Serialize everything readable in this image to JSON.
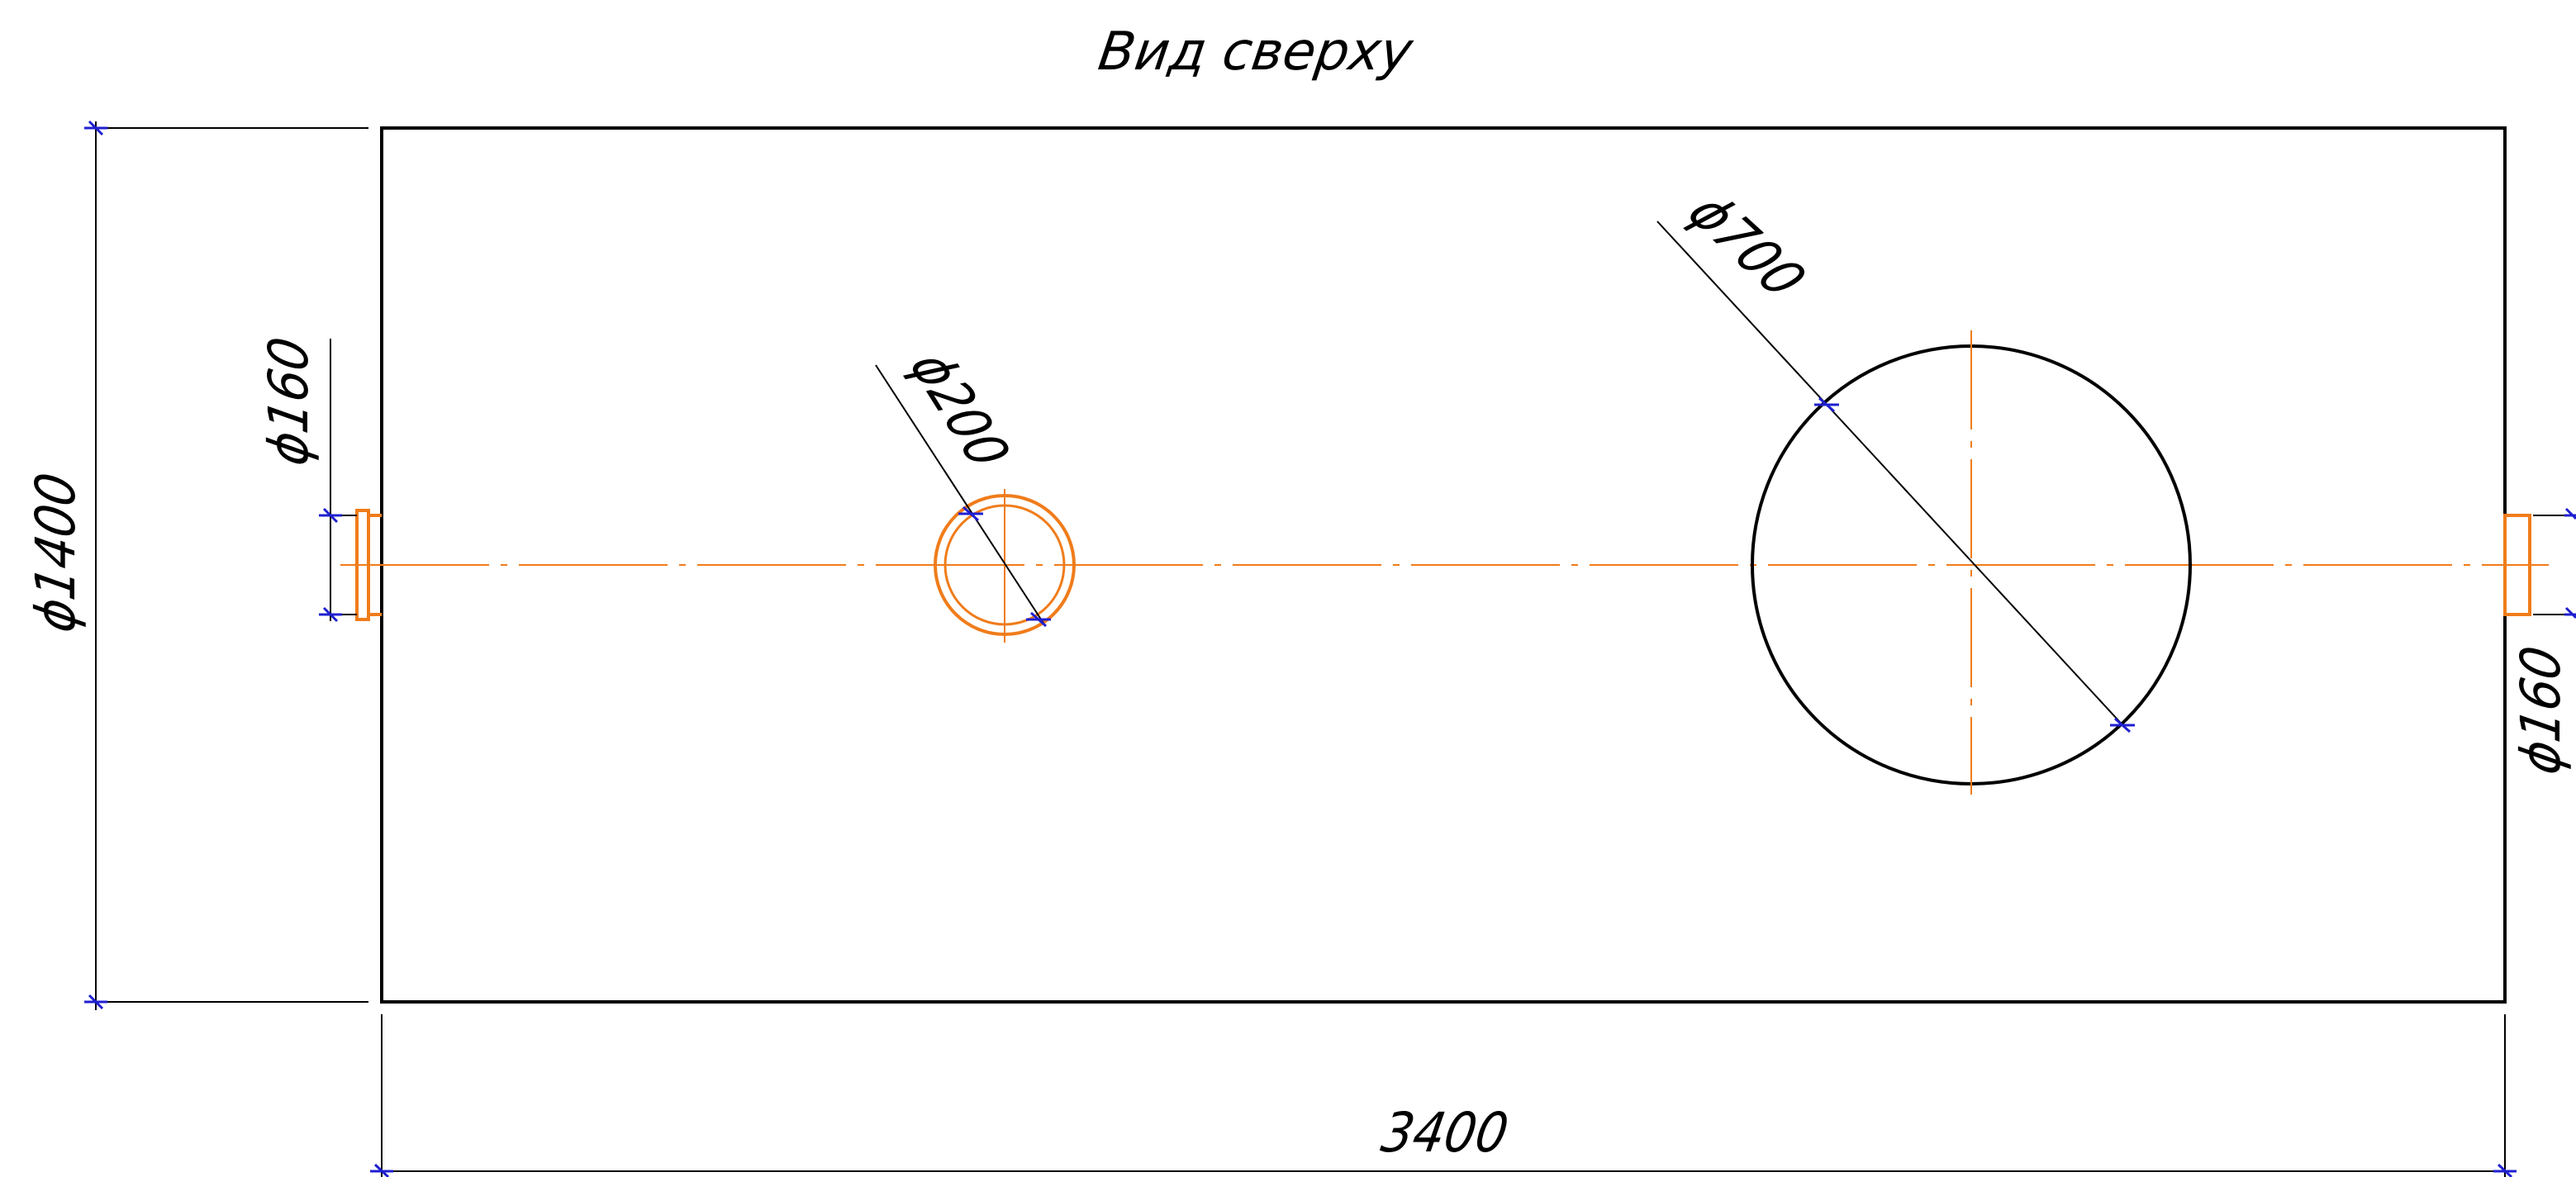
{
  "title": "Вид сверху",
  "dimensions": {
    "length": "3400",
    "diameter_body": "ϕ1400",
    "hatch_small": "ϕ200",
    "hatch_large": "ϕ700",
    "pipe_left": "ϕ160",
    "pipe_right": "ϕ160"
  },
  "colors": {
    "outline": "#000000",
    "pipe": "#f07c1a",
    "axis": "#f07c1a",
    "tick": "#1f1fd0",
    "dim_line": "#000000"
  }
}
